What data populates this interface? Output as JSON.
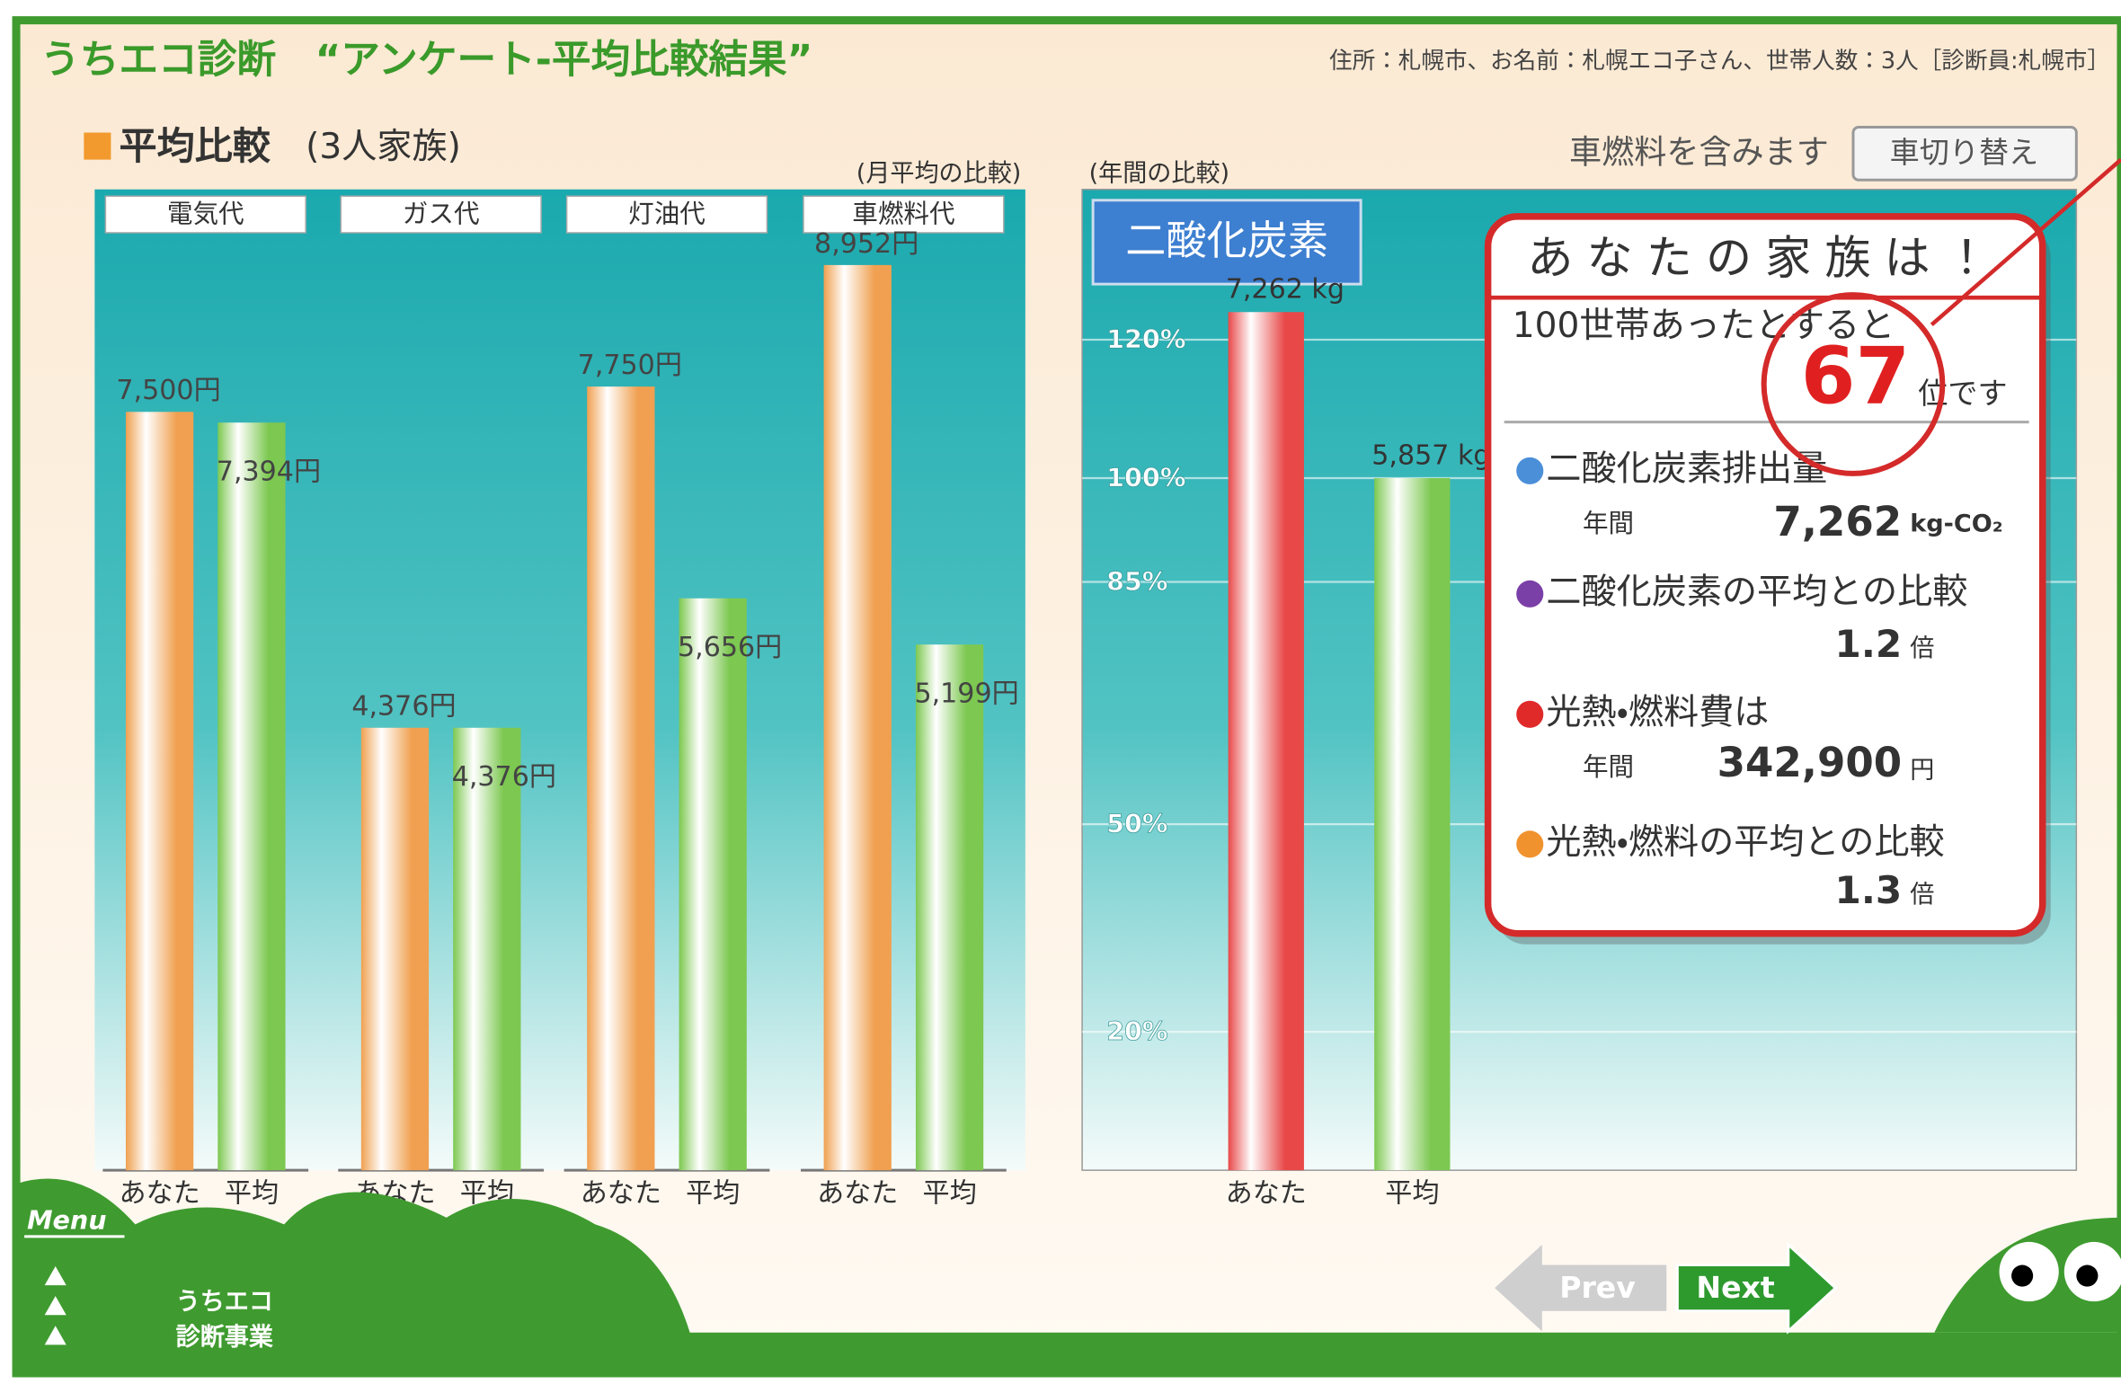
{
  "header": {
    "title": "うちエコ診断　“アンケート-平均比較結果”",
    "info": "住所：札幌市、お名前：札幌エコ子さん、世帯人数：3人［診断員:札幌市］"
  },
  "section": {
    "title": "平均比較",
    "subtitle": "(3人家族)"
  },
  "fuel_note": "車燃料を含みます",
  "switch_button": "車切り替え",
  "chart_data": [
    {
      "type": "bar",
      "subtitle": "(月平均の比較)",
      "categories": [
        "電気代",
        "ガス代",
        "灯油代",
        "車燃料代"
      ],
      "series": [
        {
          "name": "あなた",
          "color": "#f0a050",
          "values": [
            7500,
            4376,
            7750,
            8952
          ],
          "value_labels": [
            "7,500円",
            "4,376円",
            "7,750円",
            "8,952円"
          ]
        },
        {
          "name": "平均",
          "color": "#7cc850",
          "values": [
            7394,
            4376,
            5656,
            5199
          ],
          "value_labels": [
            "7,394円",
            "4,376円",
            "5,656円",
            "5,199円"
          ]
        }
      ],
      "ylim": [
        0,
        9700
      ]
    },
    {
      "type": "bar",
      "subtitle": "(年間の比較)",
      "label": "二酸化炭素",
      "categories": [
        "あなた",
        "平均"
      ],
      "values": [
        7262,
        5857
      ],
      "value_labels": [
        "7,262 kg",
        "5,857 kg"
      ],
      "colors": [
        "#e84848",
        "#7cc850"
      ],
      "ylim": [
        0,
        8300
      ],
      "yticks": [
        {
          "value": 1171.4,
          "label": "20%"
        },
        {
          "value": 2928.5,
          "label": "50%"
        },
        {
          "value": 4978.45,
          "label": "85%"
        },
        {
          "value": 5857,
          "label": "100%"
        },
        {
          "value": 7028.4,
          "label": "120%"
        }
      ],
      "grid": true
    }
  ],
  "summary": {
    "title": "あなたの家族は！",
    "intro": "100世帯あったとすると",
    "rank": "67",
    "rank_unit": "位です",
    "items": [
      {
        "label": "二酸化炭素排出量",
        "period": "年間",
        "value": "7,262",
        "unit": "kg-CO₂"
      },
      {
        "label": "二酸化炭素の平均との比較",
        "value": "1.2",
        "unit": "倍"
      },
      {
        "label": "光熱・燃料費は",
        "period": "年間",
        "value": "342,900",
        "unit": "円"
      },
      {
        "label": "光熱・燃料の平均との比較",
        "value": "1.3",
        "unit": "倍"
      }
    ]
  },
  "footer": {
    "menu": "Menu",
    "label_lines": [
      "うちエコ",
      "診断事業"
    ],
    "prev": "Prev",
    "next": "Next"
  }
}
